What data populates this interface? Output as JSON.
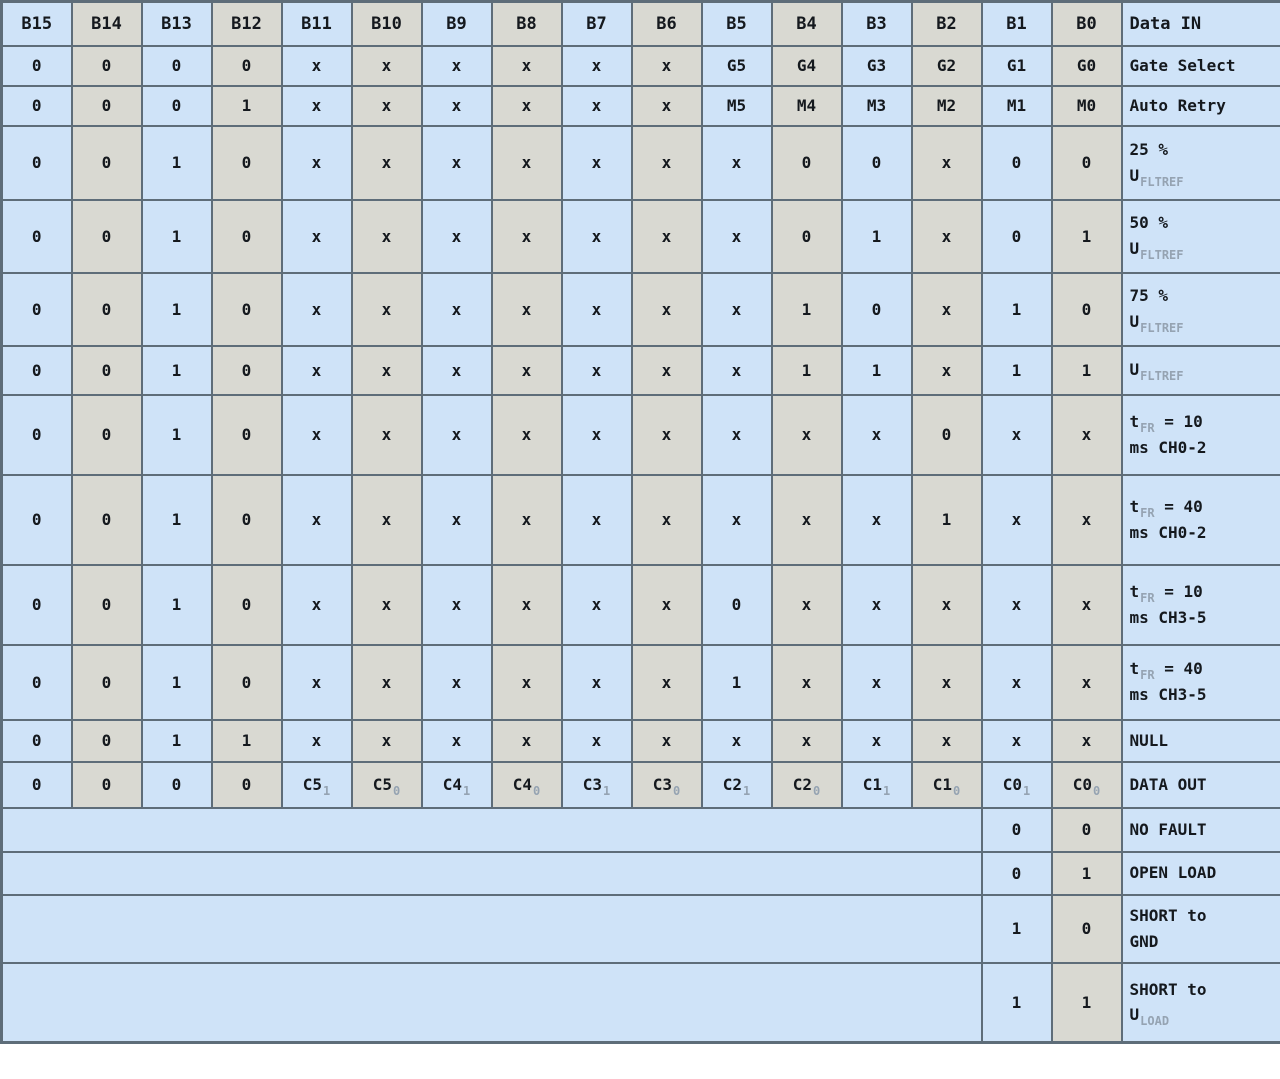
{
  "colors": {
    "cell_blue": "#cfe3f8",
    "cell_gray": "#d9d9d2",
    "border": "#5e6d79",
    "subscript": "#95a3b2",
    "text": "#15191e"
  },
  "table": {
    "columns": [
      "B15",
      "B14",
      "B13",
      "B12",
      "B11",
      "B10",
      "B9",
      "B8",
      "B7",
      "B6",
      "B5",
      "B4",
      "B3",
      "B2",
      "B1",
      "B0",
      "Data IN"
    ],
    "rows": [
      {
        "label": [
          {
            "t": "Gate Select"
          }
        ],
        "bits": [
          "0",
          "0",
          "0",
          "0",
          "x",
          "x",
          "x",
          "x",
          "x",
          "x",
          "G5",
          "G4",
          "G3",
          "G2",
          "G1",
          "G0"
        ]
      },
      {
        "label": [
          {
            "t": "Auto Retry"
          }
        ],
        "bits": [
          "0",
          "0",
          "0",
          "1",
          "x",
          "x",
          "x",
          "x",
          "x",
          "x",
          "M5",
          "M4",
          "M3",
          "M2",
          "M1",
          "M0"
        ]
      },
      {
        "label": [
          {
            "t": "25 %"
          },
          {
            "br": true
          },
          {
            "t": "U"
          },
          {
            "sub": "FLTREF"
          }
        ],
        "bits": [
          "0",
          "0",
          "1",
          "0",
          "x",
          "x",
          "x",
          "x",
          "x",
          "x",
          "x",
          "0",
          "0",
          "x",
          "0",
          "0"
        ]
      },
      {
        "label": [
          {
            "t": "50 %"
          },
          {
            "br": true
          },
          {
            "t": "U"
          },
          {
            "sub": "FLTREF"
          }
        ],
        "bits": [
          "0",
          "0",
          "1",
          "0",
          "x",
          "x",
          "x",
          "x",
          "x",
          "x",
          "x",
          "0",
          "1",
          "x",
          "0",
          "1"
        ]
      },
      {
        "label": [
          {
            "t": "75 %"
          },
          {
            "br": true
          },
          {
            "t": "U"
          },
          {
            "sub": "FLTREF"
          }
        ],
        "bits": [
          "0",
          "0",
          "1",
          "0",
          "x",
          "x",
          "x",
          "x",
          "x",
          "x",
          "x",
          "1",
          "0",
          "x",
          "1",
          "0"
        ]
      },
      {
        "label": [
          {
            "t": "U"
          },
          {
            "sub": "FLTREF"
          }
        ],
        "bits": [
          "0",
          "0",
          "1",
          "0",
          "x",
          "x",
          "x",
          "x",
          "x",
          "x",
          "x",
          "1",
          "1",
          "x",
          "1",
          "1"
        ]
      },
      {
        "label": [
          {
            "t": "t"
          },
          {
            "sub": "FR"
          },
          {
            "t": " = 10"
          },
          {
            "br": true
          },
          {
            "t": "ms CH0-2"
          }
        ],
        "bits": [
          "0",
          "0",
          "1",
          "0",
          "x",
          "x",
          "x",
          "x",
          "x",
          "x",
          "x",
          "x",
          "x",
          "0",
          "x",
          "x"
        ]
      },
      {
        "label": [
          {
            "t": "t"
          },
          {
            "sub": "FR"
          },
          {
            "t": " = 40"
          },
          {
            "br": true
          },
          {
            "t": "ms CH0-2"
          }
        ],
        "bits": [
          "0",
          "0",
          "1",
          "0",
          "x",
          "x",
          "x",
          "x",
          "x",
          "x",
          "x",
          "x",
          "x",
          "1",
          "x",
          "x"
        ]
      },
      {
        "label": [
          {
            "t": "t"
          },
          {
            "sub": "FR"
          },
          {
            "t": " = 10"
          },
          {
            "br": true
          },
          {
            "t": "ms CH3-5"
          }
        ],
        "bits": [
          "0",
          "0",
          "1",
          "0",
          "x",
          "x",
          "x",
          "x",
          "x",
          "x",
          "0",
          "x",
          "x",
          "x",
          "x",
          "x"
        ]
      },
      {
        "label": [
          {
            "t": "t"
          },
          {
            "sub": "FR"
          },
          {
            "t": " = 40"
          },
          {
            "br": true
          },
          {
            "t": "ms CH3-5"
          }
        ],
        "bits": [
          "0",
          "0",
          "1",
          "0",
          "x",
          "x",
          "x",
          "x",
          "x",
          "x",
          "1",
          "x",
          "x",
          "x",
          "x",
          "x"
        ]
      },
      {
        "label": [
          {
            "t": "NULL"
          }
        ],
        "bits": [
          "0",
          "0",
          "1",
          "1",
          "x",
          "x",
          "x",
          "x",
          "x",
          "x",
          "x",
          "x",
          "x",
          "x",
          "x",
          "x"
        ]
      },
      {
        "label": [
          {
            "t": "DATA OUT"
          }
        ],
        "bits": [
          "0",
          "0",
          "0",
          "0",
          [
            {
              "t": "C5"
            },
            {
              "sub": "1"
            }
          ],
          [
            {
              "t": "C5"
            },
            {
              "sub": "0"
            }
          ],
          [
            {
              "t": "C4"
            },
            {
              "sub": "1"
            }
          ],
          [
            {
              "t": "C4"
            },
            {
              "sub": "0"
            }
          ],
          [
            {
              "t": "C3"
            },
            {
              "sub": "1"
            }
          ],
          [
            {
              "t": "C3"
            },
            {
              "sub": "0"
            }
          ],
          [
            {
              "t": "C2"
            },
            {
              "sub": "1"
            }
          ],
          [
            {
              "t": "C2"
            },
            {
              "sub": "0"
            }
          ],
          [
            {
              "t": "C1"
            },
            {
              "sub": "1"
            }
          ],
          [
            {
              "t": "C1"
            },
            {
              "sub": "0"
            }
          ],
          [
            {
              "t": "C0"
            },
            {
              "sub": "1"
            }
          ],
          [
            {
              "t": "C0"
            },
            {
              "sub": "0"
            }
          ]
        ]
      }
    ],
    "fault_rows": [
      {
        "b1": "0",
        "b0": "0",
        "label": [
          {
            "t": "NO FAULT"
          }
        ]
      },
      {
        "b1": "0",
        "b0": "1",
        "label": [
          {
            "t": "OPEN LOAD"
          }
        ]
      },
      {
        "b1": "1",
        "b0": "0",
        "label": [
          {
            "t": "SHORT to"
          },
          {
            "br": true
          },
          {
            "t": "GND"
          }
        ]
      },
      {
        "b1": "1",
        "b0": "1",
        "label": [
          {
            "t": "SHORT to"
          },
          {
            "br": true
          },
          {
            "t": "U"
          },
          {
            "sub": "LOAD"
          }
        ]
      }
    ]
  }
}
